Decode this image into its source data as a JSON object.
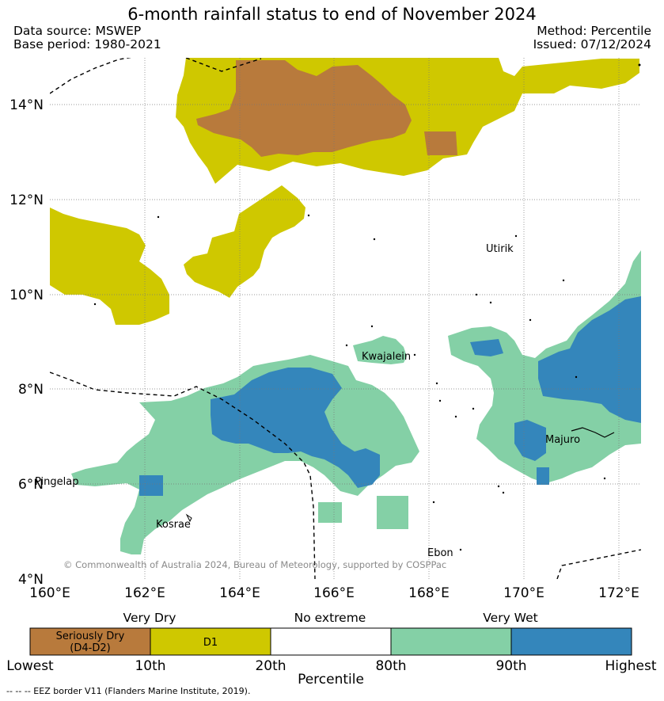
{
  "title": "6-month rainfall status to end of November 2024",
  "data_source": "Data source: MSWEP",
  "base_period": "Base period: 1980-2021",
  "method": "Method: Percentile",
  "issued": "Issued: 07/12/2024",
  "map": {
    "lat_labels": [
      "14°N",
      "12°N",
      "10°N",
      "8°N",
      "6°N",
      "4°N"
    ],
    "lon_labels": [
      "160°E",
      "162°E",
      "164°E",
      "166°E",
      "168°E",
      "170°E",
      "172°E"
    ],
    "places": [
      "Utirik",
      "Kwajalein",
      "Majuro",
      "Pingelap",
      "Kosrae",
      "Ebon"
    ],
    "copyright": "© Commonwealth of Australia 2024, Bureau of Meteorology, supported by COSPPac",
    "colors": {
      "seriously_dry": "#b87a3c",
      "d1": "#cfc800",
      "no_extreme": "#ffffff",
      "very_wet": "#84d0a6",
      "highest": "#3486bb"
    }
  },
  "legend": {
    "categories": [
      "Very Dry",
      "No extreme",
      "Very Wet"
    ],
    "swatches": [
      {
        "line1": "Seriously Dry",
        "line2": "(D4-D2)",
        "color": "#b87a3c"
      },
      {
        "line1": "D1",
        "line2": "",
        "color": "#cfc800"
      },
      {
        "line1": "",
        "line2": "",
        "color": "#ffffff"
      },
      {
        "line1": "",
        "line2": "",
        "color": "#84d0a6"
      },
      {
        "line1": "",
        "line2": "",
        "color": "#3486bb"
      }
    ],
    "ticks": [
      "Lowest",
      "10th",
      "20th",
      "80th",
      "90th",
      "Highest"
    ],
    "axis_label": "Percentile"
  },
  "footnote": "--  --  -- EEZ border V11 (Flanders Marine Institute, 2019)."
}
